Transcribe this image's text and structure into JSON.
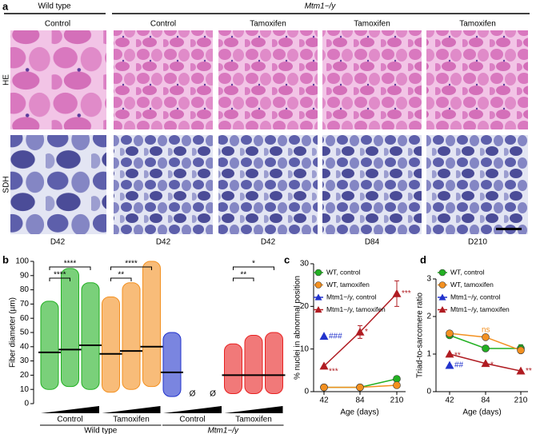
{
  "panel_a": {
    "label": "a",
    "wild_type": "Wild type",
    "mutant": "Mtm1−/y",
    "columns": [
      "Control",
      "Control",
      "Tamoxifen",
      "Tamoxifen",
      "Tamoxifen"
    ],
    "rows": [
      "HE",
      "SDH"
    ],
    "days": [
      "D42",
      "D42",
      "D42",
      "D84",
      "D210"
    ]
  },
  "chart_data": [
    {
      "type": "strip",
      "label": "b",
      "ylabel": "Fiber diameter (µm)",
      "ylim": [
        0,
        100
      ],
      "yticks": [
        0,
        10,
        20,
        30,
        40,
        50,
        60,
        70,
        80,
        90,
        100
      ],
      "missing_label": "Ø",
      "groups": [
        {
          "name": "Wild type",
          "series": [
            {
              "name": "Control",
              "color": "#22b022",
              "medians": [
                36,
                38,
                41
              ],
              "mins": [
                10,
                12,
                10
              ],
              "maxs": [
                72,
                95,
                85
              ],
              "comparisons": [
                {
                  "label": "****",
                  "from": 0,
                  "to": 1
                },
                {
                  "label": "****",
                  "from": 0,
                  "to": 2
                }
              ]
            },
            {
              "name": "Tamoxifen",
              "color": "#f39020",
              "medians": [
                35,
                37,
                40
              ],
              "mins": [
                8,
                10,
                12
              ],
              "maxs": [
                75,
                85,
                100
              ],
              "comparisons": [
                {
                  "label": "**",
                  "from": 0,
                  "to": 1
                },
                {
                  "label": "****",
                  "from": 0,
                  "to": 2
                }
              ]
            }
          ]
        },
        {
          "name": "Mtm1−/y",
          "series": [
            {
              "name": "Control",
              "color": "#2233cc",
              "medians": [
                22,
                null,
                null
              ],
              "mins": [
                5,
                null,
                null
              ],
              "maxs": [
                50,
                null,
                null
              ],
              "comparisons": []
            },
            {
              "name": "Tamoxifen",
              "color": "#e82020",
              "medians": [
                20,
                20,
                20
              ],
              "mins": [
                7,
                7,
                7
              ],
              "maxs": [
                42,
                48,
                50
              ],
              "comparisons": [
                {
                  "label": "**",
                  "from": 0,
                  "to": 1
                },
                {
                  "label": "*",
                  "from": 0,
                  "to": 2
                }
              ]
            }
          ]
        }
      ]
    },
    {
      "type": "line",
      "label": "c",
      "ylabel": "% nuclei in abnormal position",
      "xlabel": "Age (days)",
      "categories": [
        "42",
        "84",
        "210"
      ],
      "ylim": [
        0,
        30
      ],
      "yticks": [
        0,
        10,
        20,
        30
      ],
      "series": [
        {
          "name": "WT, control",
          "color": "#22b022",
          "marker": "circle",
          "values": [
            1,
            1,
            3
          ]
        },
        {
          "name": "WT, tamoxifen",
          "color": "#f39020",
          "marker": "circle",
          "values": [
            1,
            1,
            1.5
          ]
        },
        {
          "name": "Mtm1−/y, control",
          "color": "#2233cc",
          "marker": "triangle",
          "values": [
            13,
            null,
            null
          ]
        },
        {
          "name": "Mtm1−/y, tamoxifen",
          "color": "#b01c22",
          "marker": "triangle",
          "values": [
            6,
            14,
            23
          ],
          "errors": [
            null,
            1.5,
            3
          ]
        }
      ],
      "annotations": [
        {
          "text": "###",
          "series": 2,
          "index": 0
        },
        {
          "text": "***",
          "series": 3,
          "index": 0
        },
        {
          "text": "*",
          "series": 3,
          "index": 1
        },
        {
          "text": "***",
          "series": 3,
          "index": 2
        }
      ]
    },
    {
      "type": "line",
      "label": "d",
      "ylabel": "Triad-to-sarcomere ratio",
      "xlabel": "Age (days)",
      "categories": [
        "42",
        "84",
        "210"
      ],
      "ylim": [
        0,
        3
      ],
      "yticks": [
        0,
        1,
        2,
        3
      ],
      "series": [
        {
          "name": "WT, control",
          "color": "#22b022",
          "marker": "circle",
          "values": [
            1.5,
            1.15,
            1.15
          ],
          "errors": [
            null,
            null,
            0.1
          ]
        },
        {
          "name": "WT, tamoxifen",
          "color": "#f39020",
          "marker": "circle",
          "values": [
            1.55,
            1.45,
            1.1
          ]
        },
        {
          "name": "Mtm1−/y, control",
          "color": "#2233cc",
          "marker": "triangle",
          "values": [
            0.7,
            null,
            null
          ]
        },
        {
          "name": "Mtm1−/y, tamoxifen",
          "color": "#b01c22",
          "marker": "triangle",
          "values": [
            1.0,
            0.75,
            0.55
          ]
        }
      ],
      "annotations": [
        {
          "text": "ns",
          "series": 1,
          "index": 1
        },
        {
          "text": "**",
          "series": 3,
          "index": 0
        },
        {
          "text": "##",
          "series": 2,
          "index": 0
        },
        {
          "text": "*",
          "series": 3,
          "index": 1
        },
        {
          "text": "**",
          "series": 3,
          "index": 2
        }
      ]
    }
  ]
}
